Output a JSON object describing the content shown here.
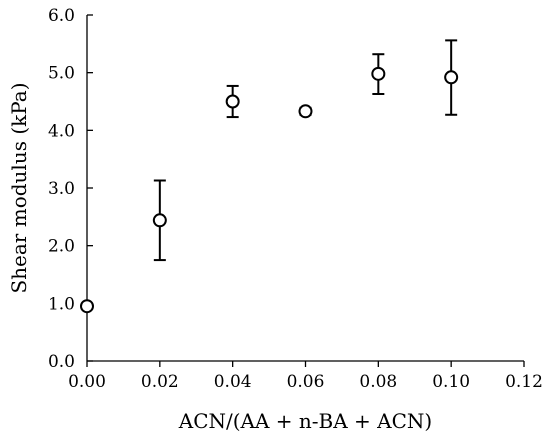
{
  "chart_data": {
    "type": "scatter",
    "title": "",
    "xlabel": "ACN/(AA + n-BA + ACN)",
    "ylabel": "Shear modulus (kPa)",
    "xlim": [
      0,
      0.12
    ],
    "ylim": [
      0,
      6
    ],
    "x_ticks": [
      "0.00",
      "0.02",
      "0.04",
      "0.06",
      "0.08",
      "0.10",
      "0.12"
    ],
    "y_ticks": [
      "0.0",
      "1.0",
      "2.0",
      "3.0",
      "4.0",
      "5.0",
      "6.0"
    ],
    "grid": false,
    "legend": "none",
    "marker": "open-circle",
    "points": [
      {
        "x": 0.0,
        "y": 0.95,
        "err_low": 0.95,
        "err_high": 0.95
      },
      {
        "x": 0.02,
        "y": 2.44,
        "err_low": 1.75,
        "err_high": 3.13
      },
      {
        "x": 0.04,
        "y": 4.5,
        "err_low": 4.23,
        "err_high": 4.77
      },
      {
        "x": 0.06,
        "y": 4.33,
        "err_low": 4.27,
        "err_high": 4.39
      },
      {
        "x": 0.08,
        "y": 4.98,
        "err_low": 4.63,
        "err_high": 5.32
      },
      {
        "x": 0.1,
        "y": 4.92,
        "err_low": 4.27,
        "err_high": 5.56
      }
    ]
  }
}
